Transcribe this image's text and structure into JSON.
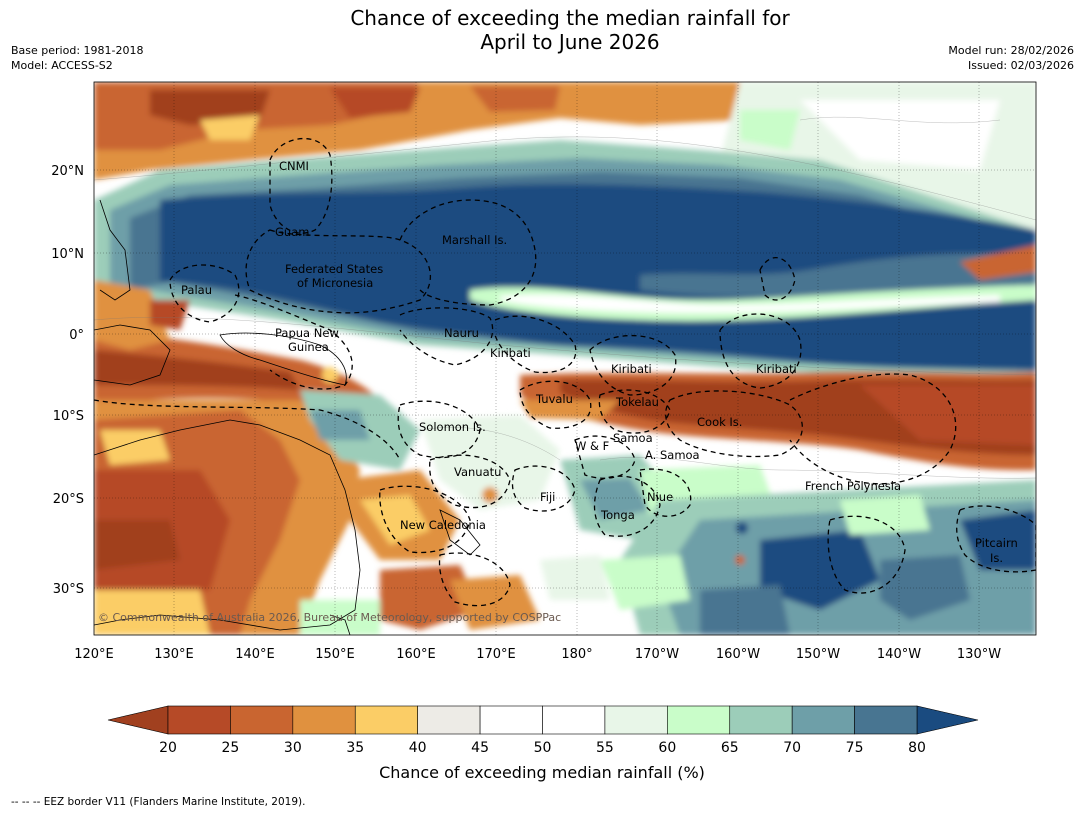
{
  "title": {
    "line1": "Chance of exceeding the median rainfall for",
    "line2": "April to June 2026"
  },
  "meta_left": {
    "base_period": "Base period: 1981-2018",
    "model": "Model: ACCESS-S2"
  },
  "meta_right": {
    "model_run": "Model run: 28/02/2026",
    "issued": "Issued: 02/03/2026"
  },
  "map": {
    "lon_labels": [
      "120°E",
      "130°E",
      "140°E",
      "150°E",
      "160°E",
      "170°E",
      "180°",
      "170°W",
      "160°W",
      "150°W",
      "140°W",
      "130°W"
    ],
    "lat_labels": [
      "20°N",
      "10°N",
      "0°",
      "10°S",
      "20°S",
      "30°S"
    ],
    "regions": [
      "CNMI",
      "Guam",
      "Marshall Is.",
      "Federated States",
      "of Micronesia",
      "Palau",
      "Papua New",
      "Guinea",
      "Nauru",
      "Kiribati",
      "Kiribati",
      "Kiribati",
      "Tuvalu",
      "Tokelau",
      "Cook Is.",
      "Solomon Is.",
      "W & F",
      "Samoa",
      "A. Samoa",
      "Vanuatu",
      "Fiji",
      "Niue",
      "Tonga",
      "French Polynesia",
      "New Caledonia",
      "Pitcairn",
      "Is."
    ],
    "copyright": "© Commonwealth of Australia 2026, Bureau of Meteorology, supported by COSPPac"
  },
  "colorbar": {
    "ticks": [
      "20",
      "25",
      "30",
      "35",
      "40",
      "45",
      "50",
      "55",
      "60",
      "65",
      "70",
      "75",
      "80"
    ],
    "colors": [
      "#a1401f",
      "#b64a27",
      "#c96530",
      "#e0913f",
      "#fbcd66",
      "#edebe6",
      "#ffffff",
      "#ffffff",
      "#e8f6e8",
      "#c9fdc9",
      "#9ccdb9",
      "#6e9fa8",
      "#487591",
      "#1a4b80"
    ],
    "title": "Chance of exceeding median rainfall (%)"
  },
  "footnote": "-- -- -- EEZ border V11 (Flanders Marine Institute, 2019)."
}
